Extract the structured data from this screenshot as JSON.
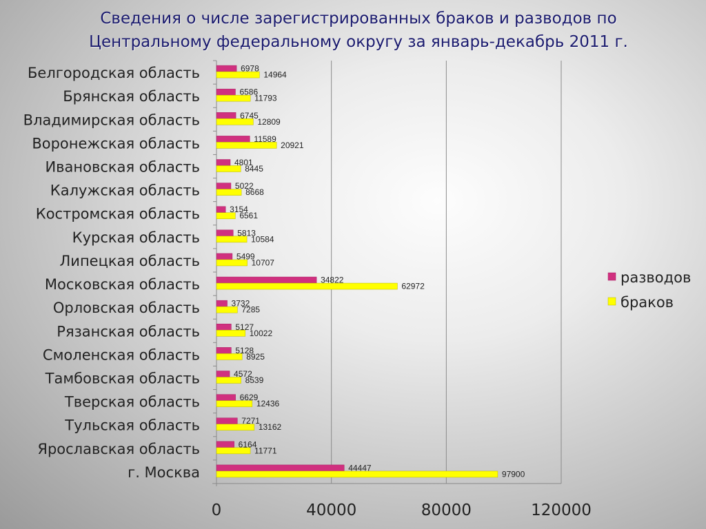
{
  "title_line1": "Сведения о числе зарегистрированных браков и разводов по",
  "title_line2": "Центральному федеральному округу за январь-декабрь 2011 г.",
  "chart_data": {
    "type": "bar",
    "orientation": "horizontal",
    "categories": [
      "Белгородская область",
      "Брянская область",
      "Владимирская область",
      "Воронежская область",
      "Ивановская область",
      "Калужская область",
      "Костромская область",
      "Курская область",
      "Липецкая область",
      "Московская область",
      "Орловская область",
      "Рязанская область",
      "Смоленская область",
      "Тамбовская область",
      "Тверская область",
      "Тульская область",
      "Ярославская область",
      "г. Москва"
    ],
    "series": [
      {
        "name": "разводов",
        "color": "#d0307f",
        "values": [
          6978,
          6586,
          6745,
          11589,
          4801,
          5022,
          3154,
          5813,
          5499,
          34822,
          3732,
          5127,
          5128,
          4572,
          6629,
          7271,
          6164,
          44447
        ]
      },
      {
        "name": "браков",
        "color": "#ffff00",
        "values": [
          14964,
          11793,
          12809,
          20921,
          8445,
          8668,
          6561,
          10584,
          10707,
          62972,
          7285,
          10022,
          8925,
          8539,
          12436,
          13162,
          11771,
          97900
        ]
      }
    ],
    "xlim": [
      0,
      120000
    ],
    "xticks": [
      0,
      40000,
      80000,
      120000
    ],
    "grid": true,
    "legend_position": "right"
  }
}
